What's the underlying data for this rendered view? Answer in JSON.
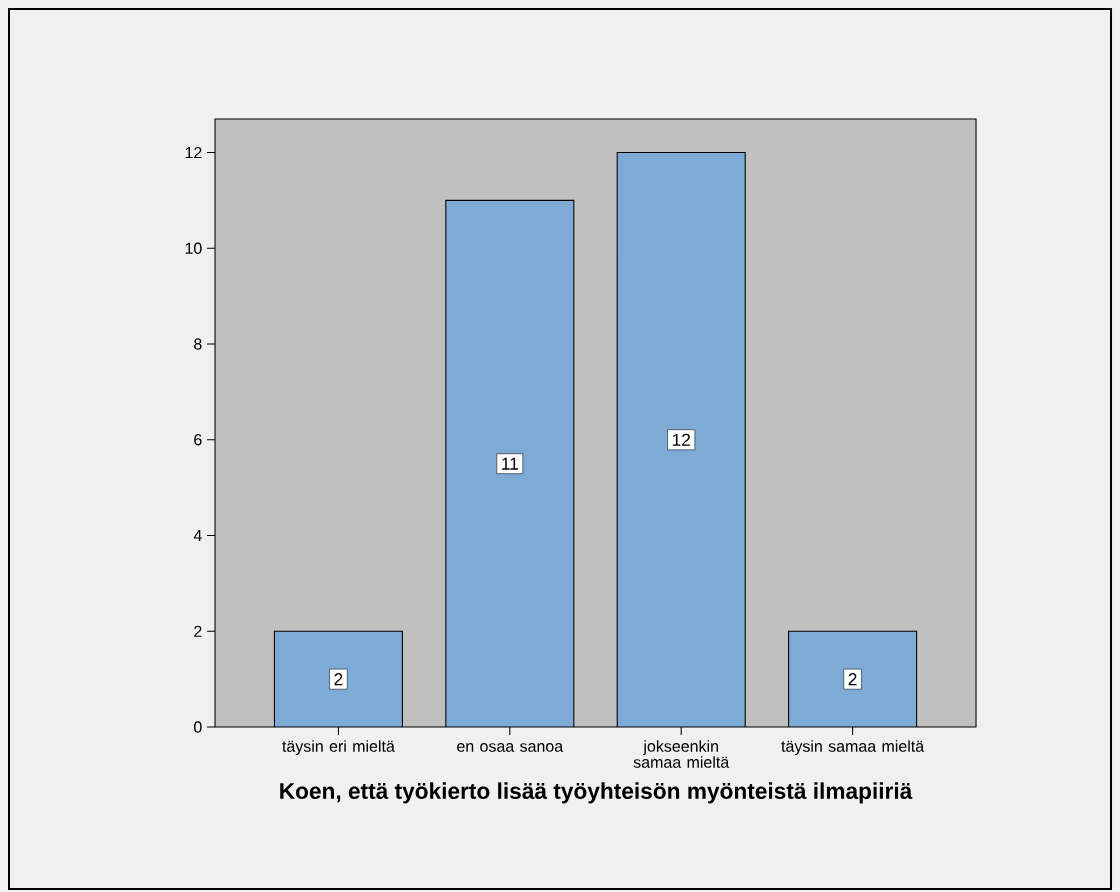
{
  "chart_data": {
    "type": "bar",
    "xlabel": "Koen, että työkierto lisää työyhteisön myönteistä ilmapiiriä",
    "categories": [
      "täysin eri mieltä",
      "en osaa sanoa",
      "jokseenkin samaa mieltä",
      "täysin samaa mieltä"
    ],
    "values": [
      2,
      11,
      12,
      2
    ],
    "color": "#7eaad6",
    "data_labels": true,
    "ylim": [
      0,
      12.7
    ],
    "yticks": [
      0,
      2,
      4,
      6,
      8,
      10,
      12
    ]
  }
}
